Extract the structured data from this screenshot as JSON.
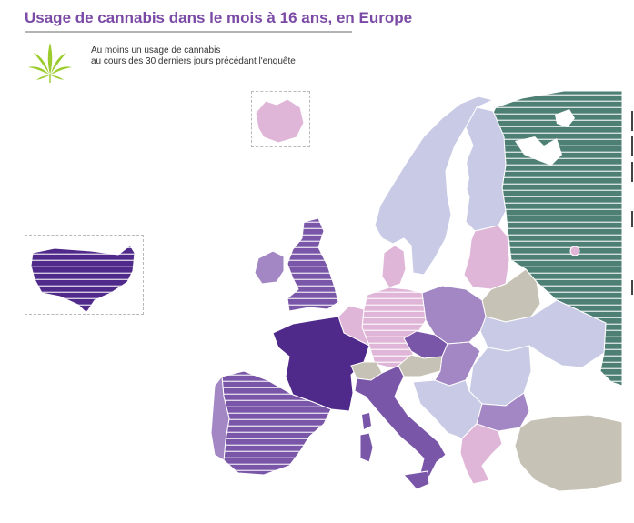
{
  "title": "Usage de cannabis dans le mois à 16 ans, en Europe",
  "subtitle": {
    "line1": "Au moins un usage de cannabis",
    "line2": "au cours des 30 derniers jours précédant l'enquête"
  },
  "icon": "cannabis-leaf-icon",
  "colors": {
    "very_high": "#4f2a8a",
    "high": "#7a56a8",
    "medium": "#a287c4",
    "low": "#e0b6d8",
    "very_low": "#c9cbe6",
    "no_data": "#c6c3b6",
    "russia": "#4e7f74",
    "accent_title": "#7a4aa6",
    "leaf": "#9ccb2d"
  },
  "stripes_meaning": "",
  "regions": [
    {
      "id": "usa",
      "level": "very_high",
      "striped": true
    },
    {
      "id": "iceland",
      "level": "low",
      "striped": false
    },
    {
      "id": "ireland",
      "level": "medium",
      "striped": false
    },
    {
      "id": "united-kingdom",
      "level": "high",
      "striped": true
    },
    {
      "id": "france",
      "level": "very_high",
      "striped": false
    },
    {
      "id": "spain",
      "level": "high",
      "striped": true
    },
    {
      "id": "portugal",
      "level": "medium",
      "striped": false
    },
    {
      "id": "benelux",
      "level": "low",
      "striped": false
    },
    {
      "id": "germany",
      "level": "low",
      "striped": true
    },
    {
      "id": "switzerland",
      "level": "no_data",
      "striped": false
    },
    {
      "id": "italy",
      "level": "high",
      "striped": false
    },
    {
      "id": "sardinia",
      "level": "high",
      "striped": false
    },
    {
      "id": "sicily",
      "level": "high",
      "striped": false
    },
    {
      "id": "austria",
      "level": "no_data",
      "striped": false
    },
    {
      "id": "czechia",
      "level": "high",
      "striped": false
    },
    {
      "id": "poland",
      "level": "medium",
      "striped": false
    },
    {
      "id": "slovakia-hungary",
      "level": "medium",
      "striped": false
    },
    {
      "id": "balkans",
      "level": "very_low",
      "striped": false
    },
    {
      "id": "romania",
      "level": "very_low",
      "striped": false
    },
    {
      "id": "bulgaria",
      "level": "medium",
      "striped": false
    },
    {
      "id": "greece",
      "level": "low",
      "striped": false
    },
    {
      "id": "turkey",
      "level": "no_data",
      "striped": false
    },
    {
      "id": "ukraine",
      "level": "very_low",
      "striped": false
    },
    {
      "id": "belarus",
      "level": "no_data",
      "striped": false
    },
    {
      "id": "baltics",
      "level": "low",
      "striped": false
    },
    {
      "id": "scandinavia",
      "level": "very_low",
      "striped": false
    },
    {
      "id": "finland",
      "level": "very_low",
      "striped": false
    },
    {
      "id": "denmark",
      "level": "low",
      "striped": false
    },
    {
      "id": "russia",
      "level": "russia",
      "striped": true
    },
    {
      "id": "moscow-marker",
      "level": "low",
      "striped": false
    }
  ]
}
